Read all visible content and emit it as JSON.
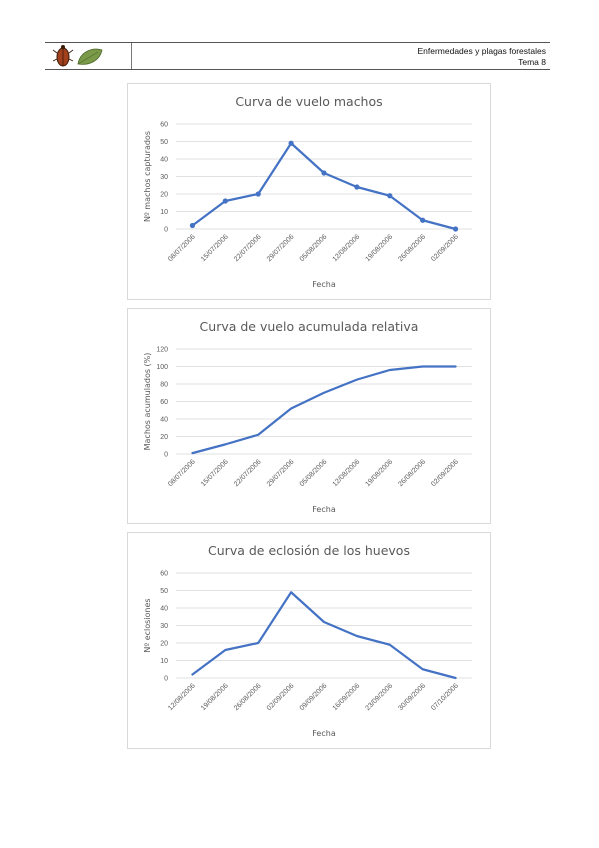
{
  "header": {
    "line1": "Enfermedades y plagas forestales",
    "line2": "Tema 8",
    "logo_icons": [
      "beetle-icon",
      "leaf-icon"
    ]
  },
  "colors": {
    "series": "#4472c4",
    "grid": "#d9d9d9",
    "text": "#595959"
  },
  "chart_data": [
    {
      "type": "line",
      "title": "Curva de vuelo machos",
      "xlabel": "Fecha",
      "ylabel": "Nº machos capturados",
      "categories": [
        "08/07/2006",
        "15/07/2006",
        "22/07/2006",
        "29/07/2006",
        "05/08/2006",
        "12/08/2006",
        "19/08/2006",
        "26/08/2006",
        "02/09/2006"
      ],
      "values": [
        2,
        16,
        20,
        49,
        32,
        24,
        19,
        5,
        0
      ],
      "yticks": [
        0,
        10,
        20,
        30,
        40,
        50,
        60
      ],
      "ylim": [
        0,
        60
      ],
      "markers": true,
      "grid": true
    },
    {
      "type": "line",
      "title": "Curva de vuelo acumulada relativa",
      "xlabel": "Fecha",
      "ylabel": "Machos acumulados (%)",
      "categories": [
        "08/07/2006",
        "15/07/2006",
        "22/07/2006",
        "29/07/2006",
        "05/08/2006",
        "12/08/2006",
        "19/08/2006",
        "26/08/2006",
        "02/09/2006"
      ],
      "values": [
        1,
        11,
        22,
        52,
        70,
        85,
        96,
        100,
        100
      ],
      "yticks": [
        0,
        20,
        40,
        60,
        80,
        100,
        120
      ],
      "ylim": [
        0,
        120
      ],
      "markers": false,
      "grid": true
    },
    {
      "type": "line",
      "title": "Curva de eclosión de los huevos",
      "xlabel": "Fecha",
      "ylabel": "Nº eclosiones",
      "categories": [
        "12/08/2006",
        "19/08/2006",
        "26/08/2006",
        "02/09/2006",
        "09/09/2006",
        "16/09/2006",
        "23/09/2006",
        "30/09/2006",
        "07/10/2006"
      ],
      "values": [
        2,
        16,
        20,
        49,
        32,
        24,
        19,
        5,
        0
      ],
      "yticks": [
        0,
        10,
        20,
        30,
        40,
        50,
        60
      ],
      "ylim": [
        0,
        60
      ],
      "markers": false,
      "grid": true
    }
  ]
}
